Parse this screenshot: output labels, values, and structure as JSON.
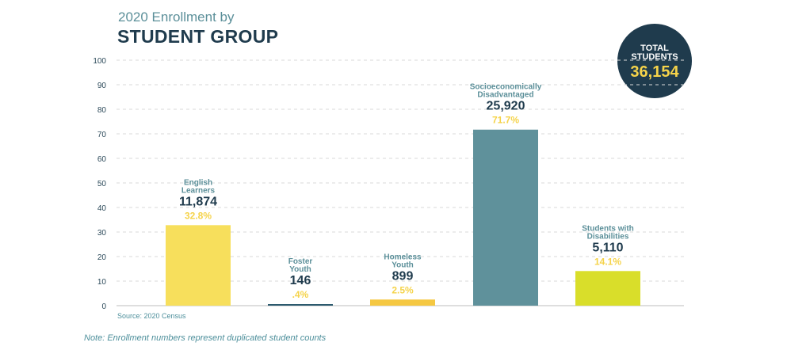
{
  "header": {
    "subtitle": "2020 Enrollment by",
    "title": "STUDENT GROUP"
  },
  "total": {
    "label_line1": "TOTAL",
    "label_line2": "STUDENTS",
    "value": "36,154"
  },
  "source": "Source: 2020 Census",
  "note": "Note: Enrollment numbers represent duplicated student counts",
  "colors": {
    "title": "#1f3b4d",
    "teal_text": "#5b8f99",
    "percent": "#f5d34a",
    "grid": "#d9d9d9"
  },
  "chart_data": {
    "type": "bar",
    "ylim": [
      0,
      100
    ],
    "yticks": [
      "0",
      "10",
      "20",
      "30",
      "40",
      "50",
      "60",
      "70",
      "80",
      "90",
      "100"
    ],
    "grid": true,
    "bars": [
      {
        "label_lines": [
          "English",
          "Learners"
        ],
        "count": "11,874",
        "percent_label": "32.8%",
        "value": 32.8,
        "color": "#f7df5c"
      },
      {
        "label_lines": [
          "Foster",
          "Youth"
        ],
        "count": "146",
        "percent_label": ".4%",
        "value": 0.4,
        "color": "#2c5a6e"
      },
      {
        "label_lines": [
          "Homeless",
          "Youth"
        ],
        "count": "899",
        "percent_label": "2.5%",
        "value": 2.5,
        "color": "#f5c842"
      },
      {
        "label_lines": [
          "Socioeconomically",
          "Disadvantaged"
        ],
        "count": "25,920",
        "percent_label": "71.7%",
        "value": 71.7,
        "color": "#5f919b"
      },
      {
        "label_lines": [
          "Students with",
          "Disabilities"
        ],
        "count": "5,110",
        "percent_label": "14.1%",
        "value": 14.1,
        "color": "#d9de2a"
      }
    ]
  }
}
